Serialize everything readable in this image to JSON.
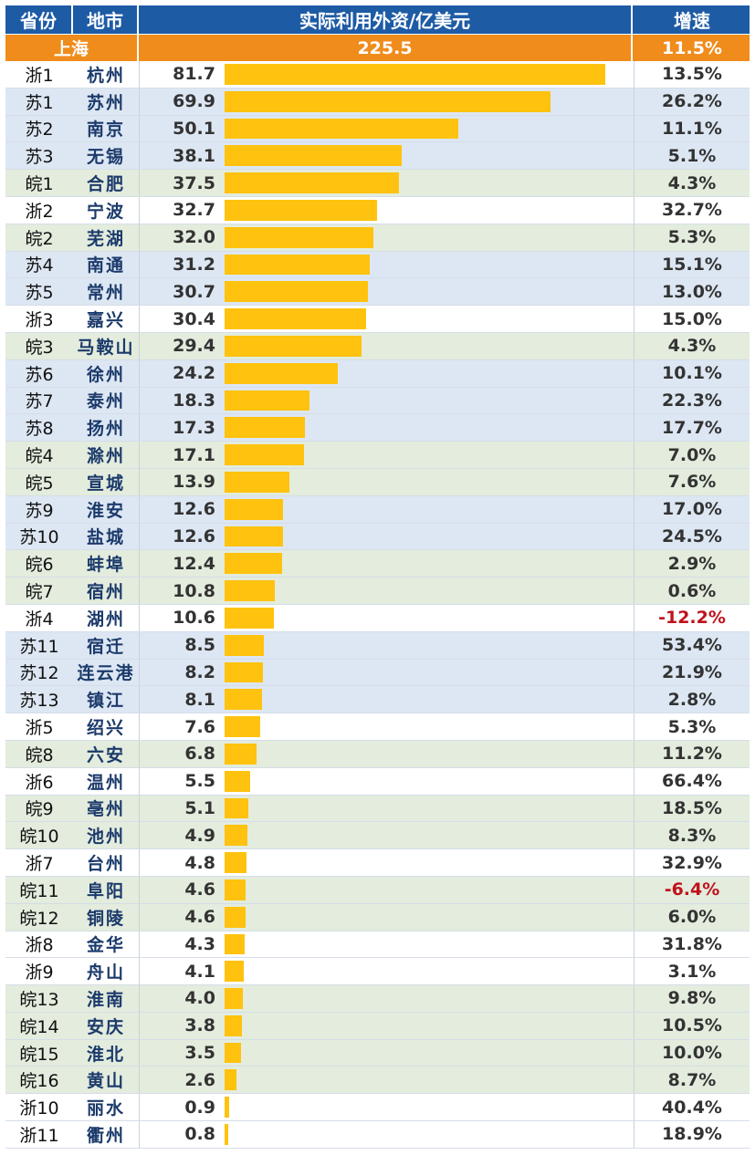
{
  "header": {
    "province": "省份",
    "city": "地市",
    "value": "实际利用外资/亿美元",
    "growth": "增速"
  },
  "shanghai": {
    "name": "上海",
    "value": "225.5",
    "growth": "11.5%"
  },
  "colors": {
    "header_bg": "#1e5ba5",
    "shanghai_bg": "#f08c1c",
    "bar": "#ffc20e",
    "jiangsu_row": "#dde7f3",
    "anhui_row": "#e3ecdd",
    "negative": "#c0121c"
  },
  "chart_data": {
    "type": "bar",
    "orientation": "horizontal",
    "categories": [
      "杭州",
      "苏州",
      "南京",
      "无锡",
      "合肥",
      "宁波",
      "芜湖",
      "南通",
      "常州",
      "嘉兴",
      "马鞍山",
      "徐州",
      "泰州",
      "扬州",
      "滁州",
      "宣城",
      "淮安",
      "盐城",
      "蚌埠",
      "宿州",
      "湖州",
      "宿迁",
      "连云港",
      "镇江",
      "绍兴",
      "六安",
      "温州",
      "亳州",
      "池州",
      "台州",
      "阜阳",
      "铜陵",
      "金华",
      "舟山",
      "淮南",
      "安庆",
      "淮北",
      "黄山",
      "丽水",
      "衢州"
    ],
    "provinces": [
      "浙1",
      "苏1",
      "苏2",
      "苏3",
      "皖1",
      "浙2",
      "皖2",
      "苏4",
      "苏5",
      "浙3",
      "皖3",
      "苏6",
      "苏7",
      "苏8",
      "皖4",
      "皖5",
      "苏9",
      "苏10",
      "皖6",
      "皖7",
      "浙4",
      "苏11",
      "苏12",
      "苏13",
      "浙5",
      "皖8",
      "浙6",
      "皖9",
      "皖10",
      "浙7",
      "皖11",
      "皖12",
      "浙8",
      "浙9",
      "皖13",
      "皖14",
      "皖15",
      "皖16",
      "浙10",
      "浙11"
    ],
    "values": [
      81.7,
      69.9,
      50.1,
      38.1,
      37.5,
      32.7,
      32.0,
      31.2,
      30.7,
      30.4,
      29.4,
      24.2,
      18.3,
      17.3,
      17.1,
      13.9,
      12.6,
      12.6,
      12.4,
      10.8,
      10.6,
      8.5,
      8.2,
      8.1,
      7.6,
      6.8,
      5.5,
      5.1,
      4.9,
      4.8,
      4.6,
      4.6,
      4.3,
      4.1,
      4.0,
      3.8,
      3.5,
      2.6,
      0.9,
      0.8
    ],
    "value_labels": [
      "81.7",
      "69.9",
      "50.1",
      "38.1",
      "37.5",
      "32.7",
      "32.0",
      "31.2",
      "30.7",
      "30.4",
      "29.4",
      "24.2",
      "18.3",
      "17.3",
      "17.1",
      "13.9",
      "12.6",
      "12.6",
      "12.4",
      "10.8",
      "10.6",
      "8.5",
      "8.2",
      "8.1",
      "7.6",
      "6.8",
      "5.5",
      "5.1",
      "4.9",
      "4.8",
      "4.6",
      "4.6",
      "4.3",
      "4.1",
      "4.0",
      "3.8",
      "3.5",
      "2.6",
      "0.9",
      "0.8"
    ],
    "growth": [
      "13.5%",
      "26.2%",
      "11.1%",
      "5.1%",
      "4.3%",
      "32.7%",
      "5.3%",
      "15.1%",
      "13.0%",
      "15.0%",
      "4.3%",
      "10.1%",
      "22.3%",
      "17.7%",
      "7.0%",
      "7.6%",
      "17.0%",
      "24.5%",
      "2.9%",
      "0.6%",
      "-12.2%",
      "53.4%",
      "21.9%",
      "2.8%",
      "5.3%",
      "11.2%",
      "66.4%",
      "18.5%",
      "8.3%",
      "32.9%",
      "-6.4%",
      "6.0%",
      "31.8%",
      "3.1%",
      "9.8%",
      "10.5%",
      "10.0%",
      "8.7%",
      "40.4%",
      "18.9%"
    ],
    "xlim": [
      0,
      81.7
    ]
  }
}
